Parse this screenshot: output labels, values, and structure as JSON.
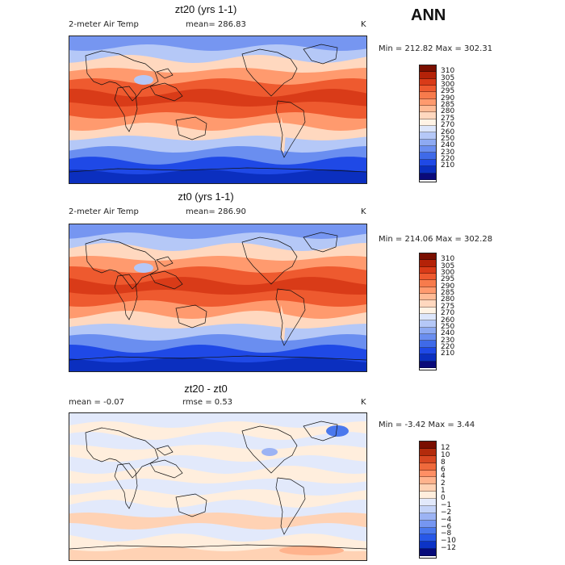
{
  "annotation": "ANN",
  "palettes": {
    "temperature": [
      "#0a0a7a",
      "#0b2fbf",
      "#1f49e6",
      "#3f6ae8",
      "#6a8ef0",
      "#8eaaf2",
      "#b5c8f7",
      "#dde6fb",
      "#fff3e5",
      "#ffd8bf",
      "#ffbb96",
      "#ff9a6e",
      "#f77b4c",
      "#ee5a2f",
      "#d93b18",
      "#b42208",
      "#7a0f00"
    ],
    "difference": [
      "#060a7a",
      "#0c33c6",
      "#2758e8",
      "#4a78ed",
      "#7696f1",
      "#9cb3f4",
      "#c4d3f8",
      "#e2e9fb",
      "#ffeedd",
      "#ffd2b4",
      "#ffb38d",
      "#ff8f64",
      "#ef6a3c",
      "#d84822",
      "#b32b0c",
      "#7a0e00"
    ]
  },
  "chart_data": [
    {
      "type": "heatmap",
      "title": "zt20 (yrs 1-1)",
      "variable": "2-meter Air Temp",
      "mean_text": "mean= 286.83",
      "units": "K",
      "min_max_text": "Min = 212.82 Max = 302.31",
      "min": 212.82,
      "max": 302.31,
      "colorbar_levels": [
        310,
        305,
        300,
        295,
        290,
        285,
        280,
        275,
        270,
        260,
        250,
        240,
        230,
        220,
        210
      ]
    },
    {
      "type": "heatmap",
      "title": "zt0 (yrs 1-1)",
      "variable": "2-meter Air Temp",
      "mean_text": "mean= 286.90",
      "units": "K",
      "min_max_text": "Min = 214.06 Max = 302.28",
      "min": 214.06,
      "max": 302.28,
      "colorbar_levels": [
        310,
        305,
        300,
        295,
        290,
        285,
        280,
        275,
        270,
        260,
        250,
        240,
        230,
        220,
        210
      ]
    },
    {
      "type": "heatmap",
      "title": "zt20 - zt0",
      "mean_text": "mean = -0.07",
      "rmse_text": "rmse = 0.53",
      "units": "K",
      "min_max_text": "Min = -3.42 Max = 3.44",
      "min": -3.42,
      "max": 3.44,
      "colorbar_levels": [
        12,
        10,
        8,
        6,
        4,
        2,
        1,
        0,
        -1,
        -2,
        -4,
        -6,
        -8,
        -10,
        -12
      ]
    }
  ]
}
